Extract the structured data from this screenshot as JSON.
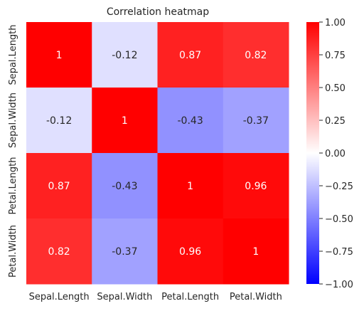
{
  "chart_data": {
    "type": "heatmap",
    "title": "Correlation heatmap",
    "xlabel": "",
    "ylabel": "",
    "x_categories": [
      "Sepal.Length",
      "Sepal.Width",
      "Petal.Length",
      "Petal.Width"
    ],
    "y_categories": [
      "Sepal.Length",
      "Sepal.Width",
      "Petal.Length",
      "Petal.Width"
    ],
    "matrix": [
      [
        1,
        -0.12,
        0.87,
        0.82
      ],
      [
        -0.12,
        1,
        -0.43,
        -0.37
      ],
      [
        0.87,
        -0.43,
        1,
        0.96
      ],
      [
        0.82,
        -0.37,
        0.96,
        1
      ]
    ],
    "cell_labels": [
      [
        "1",
        "-0.12",
        "0.87",
        "0.82"
      ],
      [
        "-0.12",
        "1",
        "-0.43",
        "-0.37"
      ],
      [
        "0.87",
        "-0.43",
        "1",
        "0.96"
      ],
      [
        "0.82",
        "-0.37",
        "0.96",
        "1"
      ]
    ],
    "colormap": "bwr",
    "colors": {
      "low": "#0000ff",
      "mid": "#ffffff",
      "high": "#ff0000"
    },
    "vmin": -1.0,
    "vmax": 1.0,
    "colorbar_ticks": [
      1.0,
      0.75,
      0.5,
      0.25,
      0.0,
      -0.25,
      -0.5,
      -0.75,
      -1.0
    ],
    "colorbar_tick_labels": [
      "1.00",
      "0.75",
      "0.50",
      "0.25",
      "0.00",
      "−0.25",
      "−0.50",
      "−0.75",
      "−1.00"
    ],
    "colorbar_position": "right",
    "grid": false
  }
}
